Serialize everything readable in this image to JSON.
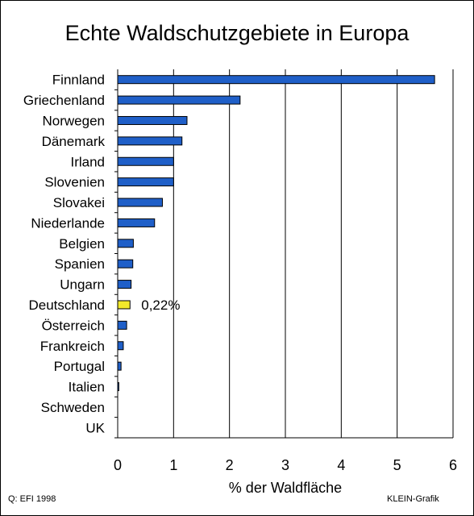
{
  "title": "Echte Waldschutzgebiete in Europa",
  "source": "Q:  EFI 1998",
  "credit": "KLEIN-Grafik",
  "colors": {
    "bar": "#1f5fc8",
    "highlight": "#f2e92b",
    "axis": "#000000",
    "grid": "#000000"
  },
  "chart_data": {
    "type": "bar",
    "orientation": "horizontal",
    "title": "Echte Waldschutzgebiete in Europa",
    "xlabel": "% der Waldfläche",
    "ylabel": "",
    "xlim": [
      0,
      6
    ],
    "xticks": [
      "0",
      "1",
      "2",
      "3",
      "4",
      "5",
      "6"
    ],
    "grid": "vertical",
    "categories": [
      "Finnland",
      "Griechenland",
      "Norwegen",
      "Dänemark",
      "Irland",
      "Slovenien",
      "Slovakei",
      "Niederlande",
      "Belgien",
      "Spanien",
      "Ungarn",
      "Deutschland",
      "Österreich",
      "Frankreich",
      "Portugal",
      "Italien",
      "Schweden",
      "UK"
    ],
    "values": [
      5.67,
      2.19,
      1.24,
      1.15,
      1.0,
      1.0,
      0.8,
      0.66,
      0.28,
      0.27,
      0.24,
      0.22,
      0.16,
      0.1,
      0.06,
      0.02,
      0.0,
      0.0
    ],
    "highlight_category": "Deutschland",
    "annotation": {
      "category": "Deutschland",
      "text": "0,22%"
    }
  }
}
